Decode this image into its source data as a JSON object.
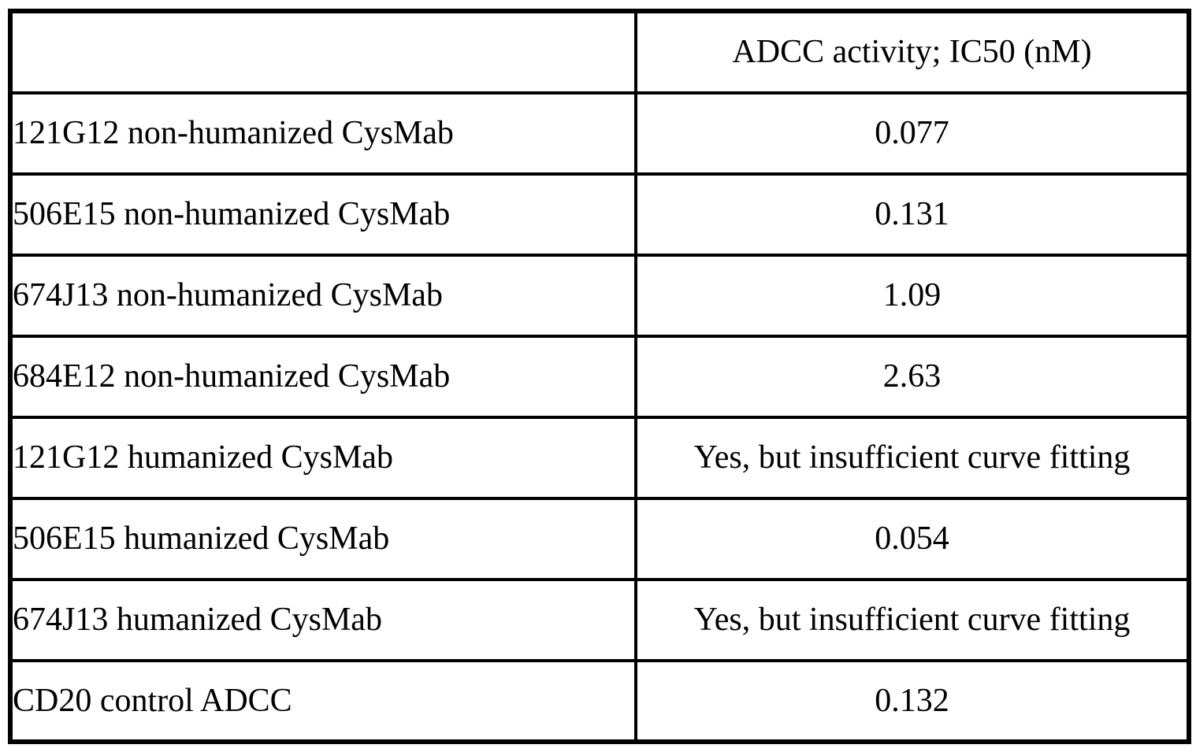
{
  "table": {
    "columns": {
      "label_header": "",
      "value_header": "ADCC activity; IC50 (nM)"
    },
    "rows": [
      {
        "label": "121G12 non-humanized CysMab",
        "value": "0.077"
      },
      {
        "label": "506E15 non-humanized CysMab",
        "value": "0.131"
      },
      {
        "label": "674J13 non-humanized CysMab",
        "value": "1.09"
      },
      {
        "label": "684E12 non-humanized CysMab",
        "value": "2.63"
      },
      {
        "label": "121G12 humanized CysMab",
        "value": "Yes, but insufficient curve fitting"
      },
      {
        "label": "506E15 humanized CysMab",
        "value": "0.054"
      },
      {
        "label": "674J13 humanized CysMab",
        "value": "Yes, but insufficient curve fitting"
      },
      {
        "label": "CD20 control ADCC",
        "value": "0.132"
      }
    ],
    "colors": {
      "border": "#000000",
      "text": "#000000",
      "background": "#ffffff"
    }
  },
  "chart_data": {
    "type": "table",
    "title": "ADCC activity; IC50 (nM)",
    "categories": [
      "121G12 non-humanized CysMab",
      "506E15 non-humanized CysMab",
      "674J13 non-humanized CysMab",
      "684E12 non-humanized CysMab",
      "121G12 humanized CysMab",
      "506E15 humanized CysMab",
      "674J13 humanized CysMab",
      "CD20 control ADCC"
    ],
    "values": [
      0.077,
      0.131,
      1.09,
      2.63,
      "Yes, but insufficient curve fitting",
      0.054,
      "Yes, but insufficient curve fitting",
      0.132
    ]
  }
}
